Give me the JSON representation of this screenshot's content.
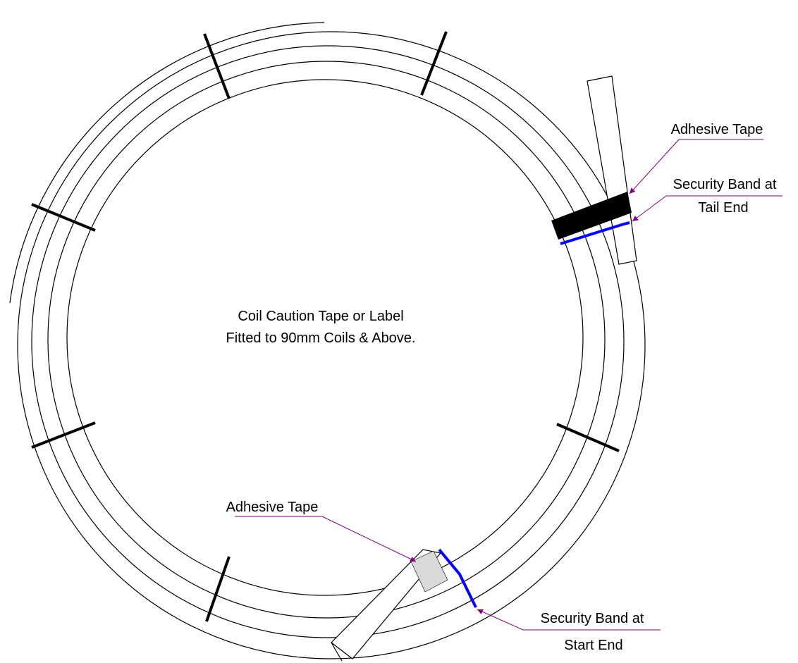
{
  "center_label": {
    "line1": "Coil Caution Tape or Label",
    "line2": "Fitted to 90mm Coils & Above."
  },
  "callouts": {
    "adhesive_tape_tail": "Adhesive Tape",
    "security_band_tail_line1": "Security Band at",
    "security_band_tail_line2": "Tail End",
    "adhesive_tape_start": "Adhesive Tape",
    "security_band_start_line1": "Security Band at",
    "security_band_start_line2": "Start End"
  },
  "colors": {
    "outline": "#000000",
    "security_band": "#0000ff",
    "leader": "#800080",
    "tape_tail": "#000000",
    "tape_start": "#d9d9d9"
  }
}
